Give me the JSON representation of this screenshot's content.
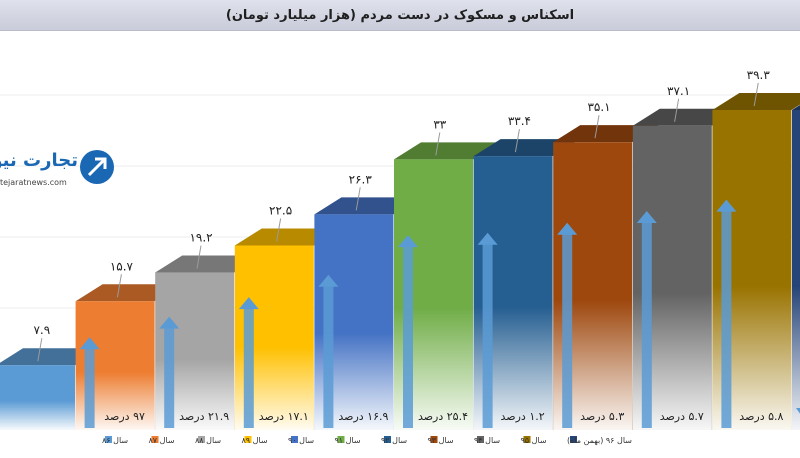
{
  "title": "اسکناس و مسکوک در دست مردم (هزار میلیارد تومان)",
  "logo": {
    "text": "تجارت نیوز",
    "url": "tejaratnews.com"
  },
  "chart_data": {
    "type": "bar",
    "title": "اسکناس و مسکوک در دست مردم (هزار میلیارد تومان)",
    "categories": [
      "سال ۸۶",
      "سال ۸۷",
      "سال ۸۸",
      "سال ۸۹",
      "سال ۹۰",
      "سال ۹۱",
      "سال ۹۲",
      "سال ۹۳",
      "سال ۹۴",
      "سال ۹۵",
      "سال ۹۶ (بهمن ماه)"
    ],
    "values": [
      7.9,
      15.7,
      19.2,
      22.5,
      26.3,
      33,
      33.4,
      35.1,
      37.1,
      39.3,
      null
    ],
    "value_labels": [
      "۷.۹",
      "۱۵.۷",
      "۱۹.۲",
      "۲۲.۵",
      "۲۶.۳",
      "۳۳",
      "۳۳.۴",
      "۳۵.۱",
      "۳۷.۱",
      "۳۹.۳",
      ""
    ],
    "growth_labels": [
      "",
      "۹۷ درصد",
      "۲۱.۹ درصد",
      "۱۷.۱ درصد",
      "۱۶.۹ درصد",
      "۲۵.۴ درصد",
      "۱.۲ درصد",
      "۵.۳ درصد",
      "۵.۷ درصد",
      "۵.۸ درصد",
      "درصد"
    ],
    "growth_direction": [
      "up",
      "up",
      "up",
      "up",
      "up",
      "up",
      "up",
      "up",
      "up",
      "up",
      "down"
    ],
    "colors": [
      "#5b9bd5",
      "#ed7d31",
      "#a5a5a5",
      "#ffc000",
      "#4472c4",
      "#70ad47",
      "#255e91",
      "#9e480e",
      "#636363",
      "#997300",
      "#264478"
    ],
    "arrow_color": "#5b9bd5",
    "legend_position": "bottom"
  }
}
